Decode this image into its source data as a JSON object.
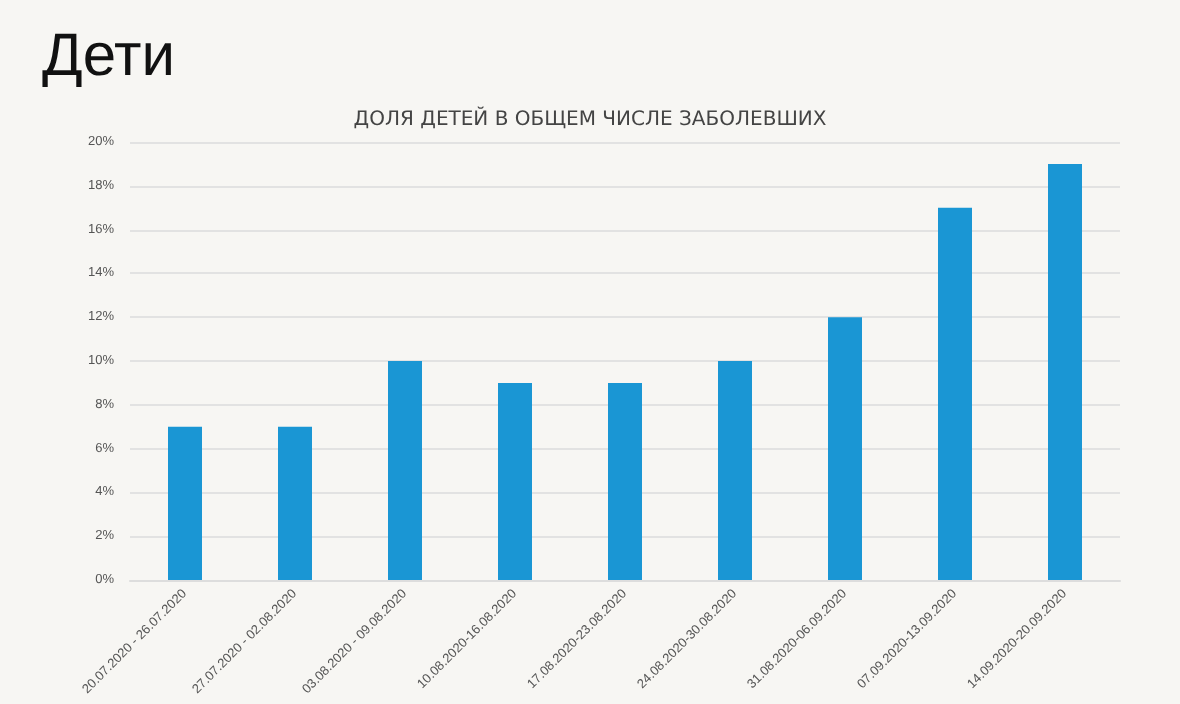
{
  "chart_data": {
    "type": "bar",
    "title": "Дети",
    "subtitle": "ДОЛЯ ДЕТЕЙ В ОБЩЕМ ЧИСЛЕ ЗАБОЛЕВШИХ",
    "categories": [
      "20.07.2020 - 26.07.2020",
      "27.07.2020 - 02.08.2020",
      "03.08.2020 - 09.08.2020",
      "10.08.2020-16.08.2020",
      "17.08.2020-23.08.2020",
      "24.08.2020-30.08.2020",
      "31.08.2020-06.09.2020",
      "07.09.2020-13.09.2020",
      "14.09.2020-20.09.2020"
    ],
    "values": [
      7,
      7,
      10,
      9,
      9,
      10,
      12,
      17,
      19
    ],
    "color": "#1a96d4",
    "ylim": [
      0,
      20
    ],
    "yticks": [
      {
        "value": 0,
        "label": "0%"
      },
      {
        "value": 2,
        "label": "2%"
      },
      {
        "value": 4,
        "label": "4%"
      },
      {
        "value": 6,
        "label": "6%"
      },
      {
        "value": 8,
        "label": "8%"
      },
      {
        "value": 10,
        "label": "10%"
      },
      {
        "value": 12,
        "label": "12%"
      },
      {
        "value": 14,
        "label": "14%"
      },
      {
        "value": 16,
        "label": "16%"
      },
      {
        "value": 18,
        "label": "18%"
      },
      {
        "value": 20,
        "label": "20%"
      }
    ],
    "grid": "y"
  }
}
